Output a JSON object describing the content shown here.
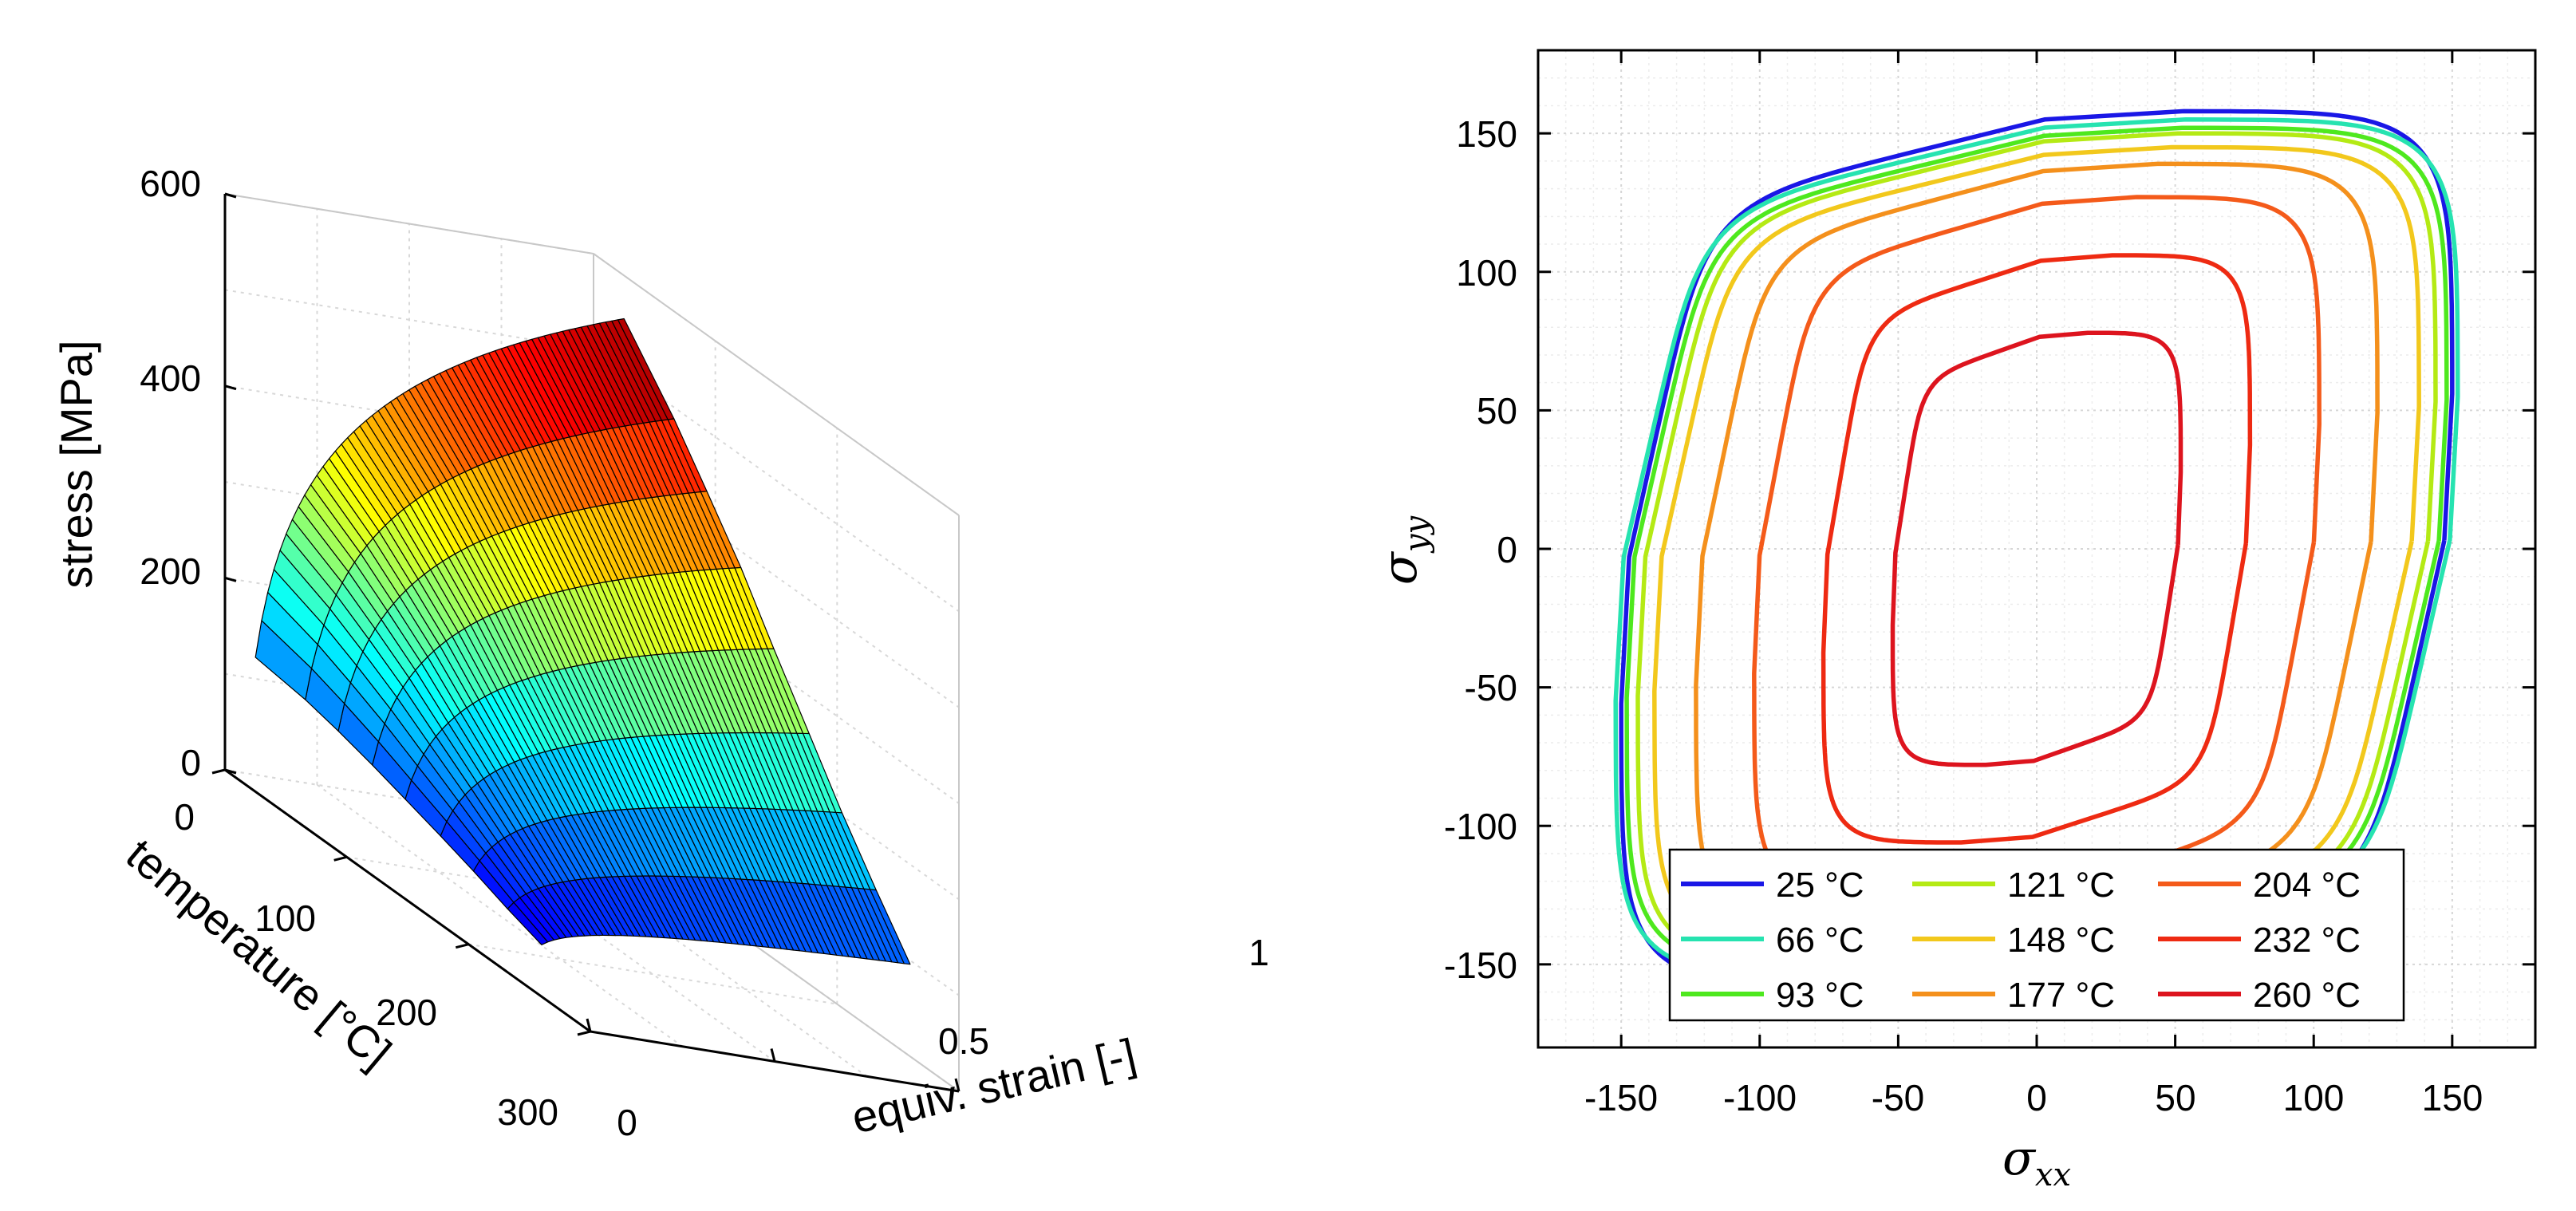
{
  "colors": {
    "25": "#1a17e6",
    "66": "#26e3b0",
    "93": "#4ee81e",
    "121": "#b4ea14",
    "148": "#f2c81c",
    "177": "#f4901c",
    "204": "#f45a1a",
    "232": "#ee2a12",
    "260": "#dd141e"
  },
  "chart_data": [
    {
      "type": "surface",
      "title": "",
      "xlabel": "equiv. strain [-]",
      "ylabel": "temperature [°C]",
      "zlabel": "stress [MPa]",
      "x_ticks": [
        "0",
        "0.5",
        "1"
      ],
      "y_ticks": [
        "0",
        "100",
        "200",
        "300"
      ],
      "z_ticks": [
        "0",
        "200",
        "400",
        "600"
      ],
      "xlim": [
        0,
        1
      ],
      "ylim": [
        0,
        300
      ],
      "zlim": [
        0,
        600
      ],
      "grid": true,
      "colormap": "jet",
      "temperatures": [
        25,
        66,
        93,
        121,
        148,
        177,
        204,
        232,
        260
      ],
      "stress_at_zero_strain": [
        140,
        133,
        125,
        115,
        104,
        92,
        80,
        66,
        54
      ],
      "stress_at_unit_strain": [
        555,
        488,
        437,
        383,
        323,
        261,
        203,
        148,
        96
      ]
    },
    {
      "type": "line",
      "title": "",
      "xlabel": "σxx",
      "ylabel": "σyy",
      "xlabel_base": "σ",
      "xlabel_sub": "xx",
      "ylabel_base": "σ",
      "ylabel_sub": "yy",
      "xlim": [
        -180,
        180
      ],
      "ylim": [
        -180,
        180
      ],
      "x_ticks": [
        "-150",
        "-100",
        "-50",
        "0",
        "50",
        "100",
        "150"
      ],
      "y_ticks": [
        "150",
        "100",
        "50",
        "0",
        "-50",
        "-100",
        "-150"
      ],
      "grid": true,
      "legend_position": "bottom-center",
      "series": [
        {
          "name": "25 °C",
          "temp": 25,
          "xmax": 150,
          "ymax": 158
        },
        {
          "name": "66 °C",
          "temp": 66,
          "xmax": 152,
          "ymax": 155
        },
        {
          "name": "93 °C",
          "temp": 93,
          "xmax": 148,
          "ymax": 152
        },
        {
          "name": "121 °C",
          "temp": 121,
          "xmax": 144,
          "ymax": 150
        },
        {
          "name": "148 °C",
          "temp": 148,
          "xmax": 138,
          "ymax": 145
        },
        {
          "name": "177 °C",
          "temp": 177,
          "xmax": 123,
          "ymax": 139
        },
        {
          "name": "204 °C",
          "temp": 204,
          "xmax": 102,
          "ymax": 127
        },
        {
          "name": "232 °C",
          "temp": 232,
          "xmax": 77,
          "ymax": 106
        },
        {
          "name": "260 °C",
          "temp": 260,
          "xmax": 52,
          "ymax": 78
        }
      ]
    }
  ]
}
